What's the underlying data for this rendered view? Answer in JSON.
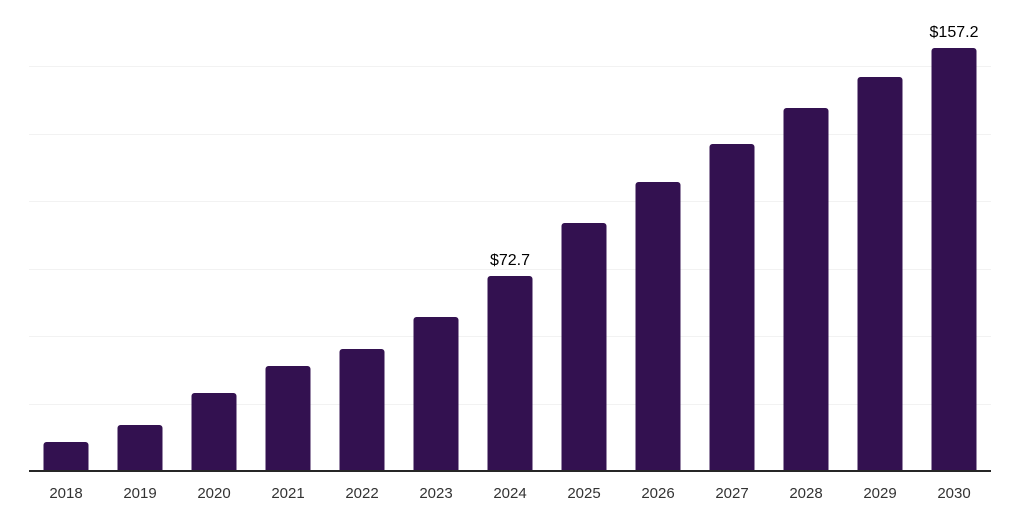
{
  "chart_data": {
    "type": "bar",
    "title": "",
    "xlabel": "",
    "ylabel": "",
    "ylim": [
      0,
      175
    ],
    "gridline_step": 25,
    "grid": true,
    "legend": false,
    "categories": [
      "2018",
      "2019",
      "2020",
      "2021",
      "2022",
      "2023",
      "2024",
      "2025",
      "2026",
      "2027",
      "2028",
      "2029",
      "2030"
    ],
    "values": [
      11.1,
      17.4,
      29.3,
      39.3,
      45.6,
      57.5,
      72.7,
      92.3,
      107.5,
      121.6,
      135.0,
      146.4,
      157.2
    ],
    "data_labels": {
      "2024": "$72.7",
      "2030": "$157.2"
    }
  },
  "colors": {
    "bar_fill": "#331150",
    "gridline": "#f2f2f2",
    "axis_line": "#262626",
    "tick_label": "#333333",
    "data_label": "#000000",
    "background": "#ffffff"
  }
}
